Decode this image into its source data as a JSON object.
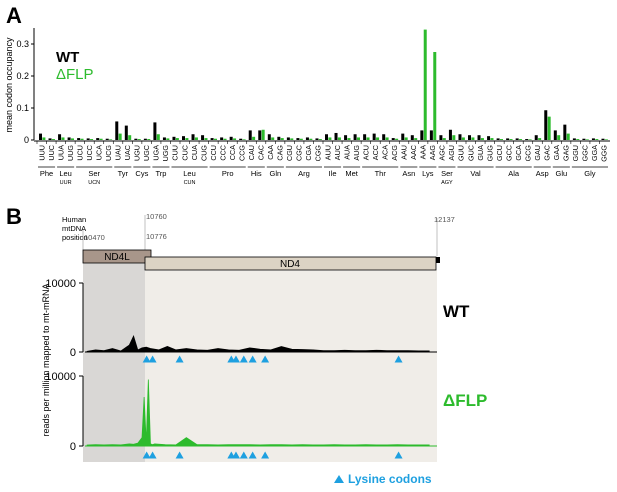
{
  "panel_a": {
    "label": "A",
    "ylabel": "mean codon occupancy",
    "yticks": [
      "0",
      "0.1",
      "0.2",
      "0.3"
    ],
    "legend": [
      {
        "text": "WT",
        "color": "#000000"
      },
      {
        "text": "ΔFLP",
        "color": "#2dbb2d"
      }
    ]
  },
  "panel_b": {
    "label": "B",
    "position_header": [
      "Human",
      "mtDNA",
      "position"
    ],
    "positions": {
      "p10470": "10470",
      "p10760": "10760",
      "p10776": "10776",
      "p12137": "12137"
    },
    "genes": {
      "nd4l": "ND4L",
      "nd4": "ND4"
    },
    "ylabel": "reads per million mapped to mt-mRNA",
    "wt_ticks": [
      "10000",
      "0"
    ],
    "flp_ticks": [
      "10000",
      "0"
    ],
    "wt_label": "WT",
    "flp_label": "ΔFLP",
    "lysine_label": "Lysine codons"
  },
  "colors": {
    "wt": "#000000",
    "flp": "#2dbb2d",
    "lysine": "#1ea0e0",
    "nd4l_box": "#a8968a",
    "nd4_box": "#dcd3c4",
    "nd4l_shade": "#d9d7d5",
    "nd4_shade": "#f0ede8"
  },
  "chart_data": [
    {
      "type": "bar",
      "title": "",
      "ylabel": "mean codon occupancy",
      "ylim": [
        0,
        0.35
      ],
      "categories": [
        "UUU",
        "UUC",
        "UUA",
        "UUG",
        "UCU",
        "UCC",
        "UCA",
        "UCG",
        "UAU",
        "UAC",
        "UGU",
        "UGC",
        "UGA",
        "UGG",
        "CUU",
        "CUC",
        "CUA",
        "CUG",
        "CCU",
        "CCC",
        "CCA",
        "CCG",
        "CAU",
        "CAC",
        "CAA",
        "CAG",
        "CGU",
        "CGC",
        "CGA",
        "CGG",
        "AUU",
        "AUC",
        "AUA",
        "AUG",
        "ACU",
        "ACC",
        "ACA",
        "ACG",
        "AAU",
        "AAC",
        "AAA",
        "AAG",
        "AGC",
        "AGU",
        "GUU",
        "GUC",
        "GUA",
        "GUG",
        "GCU",
        "GCC",
        "GCA",
        "GCG",
        "GAU",
        "GAC",
        "GAA",
        "GAG",
        "GGU",
        "GGC",
        "GGA",
        "GGG"
      ],
      "amino_acids": [
        {
          "name": "Phe",
          "sub": "",
          "codons": 2
        },
        {
          "name": "Leu",
          "sub": "UUR",
          "codons": 2
        },
        {
          "name": "Ser",
          "sub": "UCN",
          "codons": 4
        },
        {
          "name": "Tyr",
          "sub": "",
          "codons": 2
        },
        {
          "name": "Cys",
          "sub": "",
          "codons": 2
        },
        {
          "name": "Trp",
          "sub": "",
          "codons": 2
        },
        {
          "name": "Leu",
          "sub": "CUN",
          "codons": 4
        },
        {
          "name": "Pro",
          "sub": "",
          "codons": 4
        },
        {
          "name": "His",
          "sub": "",
          "codons": 2
        },
        {
          "name": "Gln",
          "sub": "",
          "codons": 2
        },
        {
          "name": "Arg",
          "sub": "",
          "codons": 4
        },
        {
          "name": "Ile",
          "sub": "",
          "codons": 2
        },
        {
          "name": "Met",
          "sub": "",
          "codons": 2
        },
        {
          "name": "Thr",
          "sub": "",
          "codons": 4
        },
        {
          "name": "Asn",
          "sub": "",
          "codons": 2
        },
        {
          "name": "Lys",
          "sub": "",
          "codons": 2
        },
        {
          "name": "Ser",
          "sub": "AGY",
          "codons": 2
        },
        {
          "name": "Val",
          "sub": "",
          "codons": 4
        },
        {
          "name": "Ala",
          "sub": "",
          "codons": 4
        },
        {
          "name": "Asp",
          "sub": "",
          "codons": 2
        },
        {
          "name": "Glu",
          "sub": "",
          "codons": 2
        },
        {
          "name": "Gly",
          "sub": "",
          "codons": 4
        }
      ],
      "series": [
        {
          "name": "WT",
          "color": "#000000",
          "values": [
            0.02,
            0.005,
            0.018,
            0.008,
            0.006,
            0.005,
            0.006,
            0.004,
            0.058,
            0.045,
            0.004,
            0.004,
            0.055,
            0.008,
            0.01,
            0.012,
            0.018,
            0.015,
            0.006,
            0.008,
            0.01,
            0.004,
            0.03,
            0.03,
            0.018,
            0.01,
            0.008,
            0.006,
            0.008,
            0.005,
            0.018,
            0.022,
            0.015,
            0.018,
            0.018,
            0.02,
            0.018,
            0.006,
            0.02,
            0.015,
            0.03,
            0.03,
            0.015,
            0.032,
            0.018,
            0.015,
            0.015,
            0.012,
            0.005,
            0.005,
            0.005,
            0.003,
            0.015,
            0.093,
            0.03,
            0.048,
            0.005,
            0.004,
            0.005,
            0.004
          ]
        },
        {
          "name": "ΔFLP",
          "color": "#2dbb2d",
          "values": [
            0.008,
            0.003,
            0.008,
            0.005,
            0.004,
            0.003,
            0.004,
            0.002,
            0.02,
            0.015,
            0.003,
            0.003,
            0.018,
            0.005,
            0.006,
            0.006,
            0.008,
            0.006,
            0.004,
            0.004,
            0.005,
            0.002,
            0.01,
            0.032,
            0.008,
            0.006,
            0.005,
            0.004,
            0.004,
            0.003,
            0.008,
            0.008,
            0.006,
            0.008,
            0.008,
            0.008,
            0.008,
            0.004,
            0.008,
            0.006,
            0.345,
            0.275,
            0.006,
            0.015,
            0.008,
            0.008,
            0.006,
            0.006,
            0.003,
            0.003,
            0.003,
            0.002,
            0.006,
            0.073,
            0.015,
            0.02,
            0.003,
            0.002,
            0.003,
            0.002
          ]
        }
      ]
    },
    {
      "type": "area",
      "title": "",
      "ylabel": "reads per million mapped to mt-mRNA",
      "xlim": [
        10470,
        12137
      ],
      "ylim": [
        0,
        10000
      ],
      "series": [
        {
          "name": "WT",
          "color": "#000000",
          "x": [
            10480,
            10520,
            10560,
            10600,
            10640,
            10680,
            10700,
            10720,
            10740,
            10760,
            10780,
            10820,
            10860,
            10900,
            10950,
            11000,
            11050,
            11100,
            11150,
            11200,
            11250,
            11300,
            11350,
            11400,
            11450,
            11500,
            11550,
            11600,
            11650,
            11700,
            11750,
            11800,
            11850,
            11900,
            11950,
            12000,
            12050,
            12100
          ],
          "y": [
            100,
            300,
            200,
            500,
            150,
            1000,
            2300,
            300,
            600,
            700,
            500,
            300,
            800,
            300,
            500,
            300,
            250,
            500,
            300,
            250,
            600,
            400,
            300,
            800,
            400,
            350,
            300,
            200,
            200,
            250,
            200,
            200,
            250,
            200,
            200,
            200,
            150,
            150
          ]
        },
        {
          "name": "ΔFLP",
          "color": "#2dbb2d",
          "x": [
            10480,
            10520,
            10560,
            10600,
            10640,
            10680,
            10700,
            10720,
            10740,
            10750,
            10760,
            10770,
            10780,
            10790,
            10800,
            10850,
            10900,
            10950,
            11000,
            11050,
            11100,
            11150,
            11200,
            11250,
            11300,
            11350,
            11400,
            11450,
            11500,
            11550,
            11600,
            11650,
            11700,
            11750,
            11800,
            11850,
            11900,
            11950,
            12000,
            12050,
            12100
          ],
          "y": [
            150,
            200,
            150,
            200,
            150,
            300,
            250,
            400,
            1200,
            7000,
            500,
            9500,
            300,
            200,
            300,
            200,
            150,
            1200,
            200,
            200,
            150,
            200,
            200,
            200,
            150,
            200,
            200,
            150,
            200,
            150,
            150,
            200,
            150,
            150,
            200,
            150,
            150,
            200,
            150,
            150,
            150
          ]
        }
      ],
      "lysine_codon_positions": [
        10762,
        10790,
        10918,
        11163,
        11185,
        11222,
        11264,
        11323,
        11955
      ]
    }
  ]
}
